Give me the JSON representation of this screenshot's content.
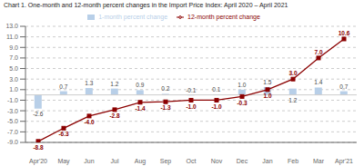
{
  "chart_data": {
    "type": "bar",
    "title": "Chart 1. One-month and 12-month percent changes in the Import Price Index: April 2020 – April 2021",
    "categories": [
      "Apr'20",
      "May",
      "Jun",
      "Jul",
      "Aug",
      "Sep",
      "Oct",
      "Nov",
      "Dec",
      "Jan",
      "Feb",
      "Mar",
      "Apr'21"
    ],
    "series": [
      {
        "name": "1-month percent change",
        "type": "bar",
        "color": "#b8cfe8",
        "values": [
          -2.6,
          0.7,
          1.3,
          1.2,
          0.9,
          0.2,
          -0.1,
          0.1,
          1.0,
          1.5,
          1.2,
          1.4,
          0.7
        ],
        "value_labels": [
          "-2.6",
          "0.7",
          "1.3",
          "1.2",
          "0.9",
          "0.2",
          "-0.1",
          "0.1",
          "1.0",
          "1.5",
          "1.2",
          "1.4",
          "0.7"
        ]
      },
      {
        "name": "12-month percent change",
        "type": "line",
        "color": "#8b0000",
        "marker": "square",
        "values": [
          -8.8,
          -6.3,
          -4.0,
          -2.8,
          -1.4,
          -1.3,
          -1.0,
          -1.0,
          -0.3,
          1.0,
          3.0,
          7.0,
          10.6
        ],
        "value_labels": [
          "-8.8",
          "-6.3",
          "-4.0",
          "-2.8",
          "-1.4",
          "-1.3",
          "-1.0",
          "-1.0",
          "-0.3",
          "1.0",
          "3.0",
          "7.0",
          "10.6"
        ]
      }
    ],
    "ylim": [
      -9.0,
      13.0
    ],
    "yticks": [
      {
        "value": -9,
        "label": "-9.0"
      },
      {
        "value": -7,
        "label": "-7.0"
      },
      {
        "value": -5,
        "label": "-5.0"
      },
      {
        "value": -3,
        "label": "-3.0"
      },
      {
        "value": -1,
        "label": "-1.0"
      },
      {
        "value": 1,
        "label": "1.0"
      },
      {
        "value": 3,
        "label": "3.0"
      },
      {
        "value": 5,
        "label": "5.0"
      },
      {
        "value": 7,
        "label": "7.0"
      },
      {
        "value": 9,
        "label": "9.0"
      },
      {
        "value": 11,
        "label": "11.0"
      },
      {
        "value": 13,
        "label": "13.0"
      }
    ],
    "grid": true,
    "data_labels": true,
    "legend": "top"
  }
}
